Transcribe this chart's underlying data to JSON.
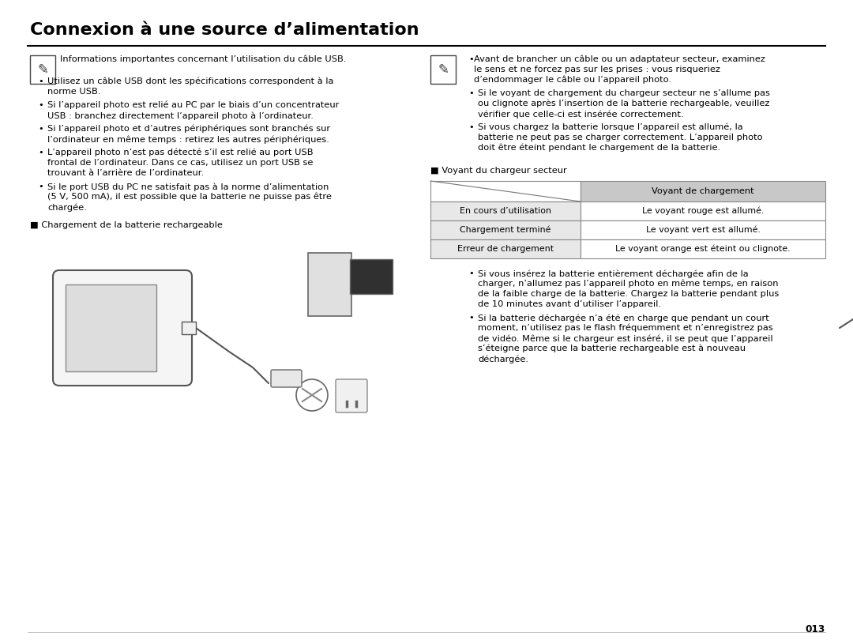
{
  "title": "Connexion à une source d’alimentation",
  "bg_color": "#ffffff",
  "title_color": "#000000",
  "title_fontsize": 16,
  "page_number": "013",
  "text_fontsize": 8.2,
  "font_family": "DejaVu Sans",
  "left_note_text": "Informations importantes concernant l’utilisation du câble USB.",
  "left_bullets": [
    "Utilisez un câble USB dont les spécifications correspondent à la\nnorme USB.",
    "Si l’appareil photo est relié au PC par le biais d’un concentrateur\nUSB : branchez directement l’appareil photo à l’ordinateur.",
    "Si l’appareil photo et d’autres périphériques sont branchés sur\nl’ordinateur en même temps : retirez les autres périphériques.",
    "L’appareil photo n’est pas détecté s’il est relié au port USB\nfrontal de l’ordinateur. Dans ce cas, utilisez un port USB se\ntrouvant à l’arrière de l’ordinateur.",
    "Si le port USB du PC ne satisfait pas à la norme d’alimentation\n(5 V, 500 mA), il est possible que la batterie ne puisse pas être\nchargée."
  ],
  "left_section2_label": "■ Chargement de la batterie rechargeable",
  "right_note_bullets": [
    "Avant de brancher un câble ou un adaptateur secteur, examinez\nle sens et ne forcez pas sur les prises : vous risqueriez\nd’endommager le câble ou l’appareil photo.",
    "Si le voyant de chargement du chargeur secteur ne s’allume pas\nou clignote après l’insertion de la batterie rechargeable, veuillez\nvérifier que celle-ci est insérée correctement.",
    "Si vous chargez la batterie lorsque l’appareil est allumé, la\nbatterie ne peut pas se charger correctement. L’appareil photo\ndoit être éteint pendant le chargement de la batterie."
  ],
  "table_section_label": "■ Voyant du chargeur secteur",
  "table_header": "Voyant de chargement",
  "table_rows": [
    [
      "En cours d’utilisation",
      "Le voyant rouge est allumé."
    ],
    [
      "Chargement terminé",
      "Le voyant vert est allumé."
    ],
    [
      "Erreur de chargement",
      "Le voyant orange est éteint ou clignote."
    ]
  ],
  "table_header_bg": "#c8c8c8",
  "table_row_bg": "#e8e8e8",
  "table_border_color": "#888888",
  "right_bullets2": [
    "Si vous insérez la batterie entièrement déchargée afin de la\ncharger, n’allumez pas l’appareil photo en même temps, en raison\nde la faible charge de la batterie. Chargez la batterie pendant plus\nde 10 minutes avant d’utiliser l’appareil.",
    "Si la batterie déchargée n’a été en charge que pendant un court\nmoment, n’utilisez pas le flash fréquemment et n’enregistrez pas\nde vidéo. Même si le chargeur est inséré, il se peut que l’appareil\ns’éteigne parce que la batterie rechargeable est à nouveau\ndéchargée."
  ]
}
